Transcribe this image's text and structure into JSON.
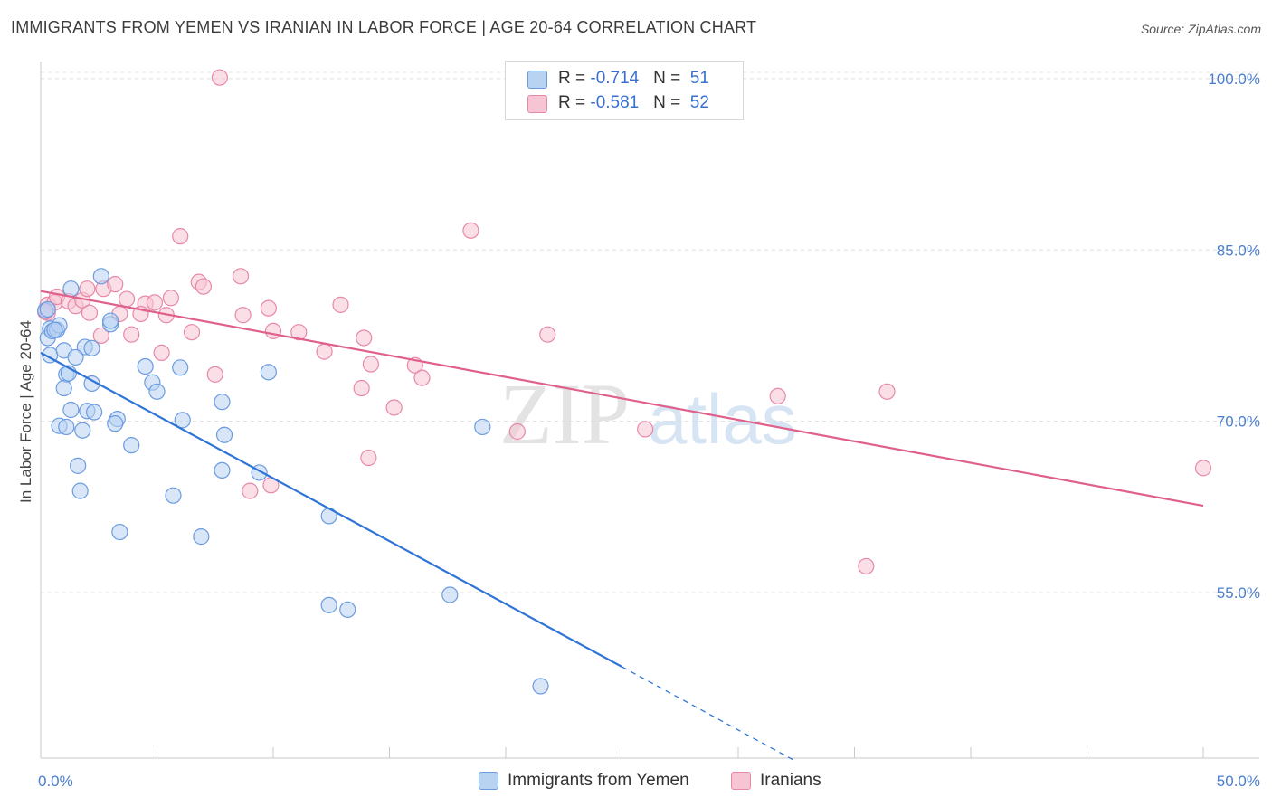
{
  "title": "IMMIGRANTS FROM YEMEN VS IRANIAN IN LABOR FORCE | AGE 20-64 CORRELATION CHART",
  "source": "Source: ZipAtlas.com",
  "watermark": {
    "zip": "ZIP",
    "atlas": "atlas"
  },
  "legend": {
    "rows": [
      {
        "r_label": "R = ",
        "r_value": "-0.714",
        "n_label": "N = ",
        "n_value": "51"
      },
      {
        "r_label": "R = ",
        "r_value": "-0.581",
        "n_label": "N = ",
        "n_value": "52"
      }
    ]
  },
  "colors": {
    "blue_fill": "#b8d2f2",
    "blue_stroke": "#6b9be0",
    "blue_line": "#2f74d6",
    "pink_fill": "#f7c4d4",
    "pink_stroke": "#e888a8",
    "pink_line": "#e0608c",
    "axis_text": "#4a7fcf"
  },
  "chart_data": {
    "type": "scatter",
    "title": "IMMIGRANTS FROM YEMEN VS IRANIAN IN LABOR FORCE | AGE 20-64 CORRELATION CHART",
    "xlabel": "",
    "ylabel": "In Labor Force | Age 20-64",
    "xlim": [
      0,
      50
    ],
    "ylim": [
      40.5,
      101.5
    ],
    "x_tick_labels": [
      "0.0%",
      "50.0%"
    ],
    "y_ticks": [
      55,
      70,
      85,
      100
    ],
    "y_tick_labels": [
      "55.0%",
      "70.0%",
      "85.0%",
      "100.0%"
    ],
    "series": [
      {
        "name": "Immigrants from Yemen",
        "color": "blue",
        "r": -0.714,
        "n": 51,
        "trend": {
          "x0": 0,
          "y0": 76.0,
          "x1": 25,
          "y1": 48.5,
          "dash_to_x": 32.5,
          "dash_to_y": 40.2
        },
        "points": [
          [
            0.2,
            79.7
          ],
          [
            0.4,
            78.1
          ],
          [
            0.3,
            77.3
          ],
          [
            0.5,
            77.9
          ],
          [
            0.7,
            78.0
          ],
          [
            0.8,
            78.4
          ],
          [
            0.4,
            75.8
          ],
          [
            2.6,
            82.7
          ],
          [
            1.3,
            81.6
          ],
          [
            3.0,
            78.5
          ],
          [
            3.0,
            78.8
          ],
          [
            1.9,
            76.5
          ],
          [
            2.2,
            76.4
          ],
          [
            1.0,
            76.2
          ],
          [
            1.5,
            75.6
          ],
          [
            1.1,
            74.1
          ],
          [
            1.2,
            74.2
          ],
          [
            1.0,
            72.9
          ],
          [
            2.2,
            73.3
          ],
          [
            1.3,
            71.0
          ],
          [
            2.0,
            70.9
          ],
          [
            2.3,
            70.8
          ],
          [
            0.8,
            69.6
          ],
          [
            1.1,
            69.5
          ],
          [
            1.8,
            69.2
          ],
          [
            3.3,
            70.2
          ],
          [
            3.2,
            69.8
          ],
          [
            4.5,
            74.8
          ],
          [
            6.0,
            74.7
          ],
          [
            4.8,
            73.4
          ],
          [
            5.0,
            72.6
          ],
          [
            7.8,
            71.7
          ],
          [
            6.1,
            70.1
          ],
          [
            3.9,
            67.9
          ],
          [
            7.9,
            68.8
          ],
          [
            9.8,
            74.3
          ],
          [
            7.8,
            65.7
          ],
          [
            9.4,
            65.5
          ],
          [
            1.6,
            66.1
          ],
          [
            1.7,
            63.9
          ],
          [
            5.7,
            63.5
          ],
          [
            3.4,
            60.3
          ],
          [
            6.9,
            59.9
          ],
          [
            12.4,
            61.7
          ],
          [
            12.4,
            53.9
          ],
          [
            13.2,
            53.5
          ],
          [
            17.6,
            54.8
          ],
          [
            19.0,
            69.5
          ],
          [
            21.5,
            46.8
          ],
          [
            0.3,
            79.8
          ],
          [
            0.6,
            78.0
          ]
        ]
      },
      {
        "name": "Iranians",
        "color": "pink",
        "r": -0.581,
        "n": 52,
        "trend": {
          "x0": 0,
          "y0": 81.4,
          "x1": 50,
          "y1": 62.6
        },
        "points": [
          [
            7.7,
            100.1
          ],
          [
            18.5,
            86.7
          ],
          [
            6.0,
            86.2
          ],
          [
            0.3,
            80.2
          ],
          [
            0.3,
            79.5
          ],
          [
            0.6,
            80.4
          ],
          [
            0.7,
            80.9
          ],
          [
            1.2,
            80.5
          ],
          [
            1.5,
            80.1
          ],
          [
            1.8,
            80.6
          ],
          [
            2.0,
            81.6
          ],
          [
            2.7,
            81.6
          ],
          [
            3.2,
            82.0
          ],
          [
            3.7,
            80.7
          ],
          [
            4.5,
            80.3
          ],
          [
            4.9,
            80.4
          ],
          [
            5.6,
            80.8
          ],
          [
            6.8,
            82.2
          ],
          [
            7.0,
            81.8
          ],
          [
            8.6,
            82.7
          ],
          [
            2.1,
            79.5
          ],
          [
            3.4,
            79.4
          ],
          [
            4.3,
            79.4
          ],
          [
            5.4,
            79.3
          ],
          [
            8.7,
            79.3
          ],
          [
            9.8,
            79.9
          ],
          [
            12.9,
            80.2
          ],
          [
            10.0,
            77.9
          ],
          [
            11.1,
            77.8
          ],
          [
            6.5,
            77.8
          ],
          [
            3.9,
            77.6
          ],
          [
            2.6,
            77.5
          ],
          [
            13.9,
            77.3
          ],
          [
            21.8,
            77.6
          ],
          [
            5.2,
            76.0
          ],
          [
            12.2,
            76.1
          ],
          [
            14.2,
            75.0
          ],
          [
            16.1,
            74.9
          ],
          [
            16.4,
            73.8
          ],
          [
            7.5,
            74.1
          ],
          [
            13.8,
            72.9
          ],
          [
            15.2,
            71.2
          ],
          [
            31.7,
            72.2
          ],
          [
            36.4,
            72.6
          ],
          [
            20.5,
            69.1
          ],
          [
            26.0,
            69.3
          ],
          [
            14.1,
            66.8
          ],
          [
            9.9,
            64.4
          ],
          [
            9.0,
            63.9
          ],
          [
            35.5,
            57.3
          ],
          [
            50.0,
            65.9
          ],
          [
            0.2,
            79.6
          ]
        ]
      }
    ]
  },
  "bottom_legend": [
    {
      "label": "Immigrants from Yemen"
    },
    {
      "label": "Iranians"
    }
  ]
}
